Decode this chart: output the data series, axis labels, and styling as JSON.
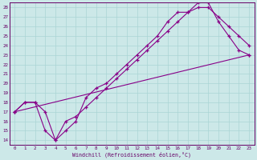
{
  "xlabel": "Windchill (Refroidissement éolien,°C)",
  "background_color": "#cce8e8",
  "grid_color": "#aad4d4",
  "line_color": "#880088",
  "spine_color": "#660066",
  "text_color": "#660066",
  "xlim": [
    -0.5,
    23.5
  ],
  "ylim": [
    13.5,
    28.5
  ],
  "xtick_labels": [
    "0",
    "1",
    "2",
    "3",
    "4",
    "5",
    "6",
    "7",
    "8",
    "9",
    "10",
    "11",
    "12",
    "13",
    "14",
    "15",
    "16",
    "17",
    "18",
    "19",
    "20",
    "21",
    "22",
    "23"
  ],
  "ytick_labels": [
    "14",
    "15",
    "16",
    "17",
    "18",
    "19",
    "20",
    "21",
    "22",
    "23",
    "24",
    "25",
    "26",
    "27",
    "28"
  ],
  "line1_x": [
    0,
    1,
    2,
    3,
    4,
    5,
    6,
    7,
    8,
    9,
    10,
    11,
    12,
    13,
    14,
    15,
    16,
    17,
    18,
    19,
    20,
    21,
    22,
    23
  ],
  "line1_y": [
    17.0,
    18.0,
    18.0,
    17.0,
    14.0,
    16.0,
    16.5,
    17.5,
    18.5,
    19.5,
    20.5,
    21.5,
    22.5,
    23.5,
    24.5,
    25.5,
    26.5,
    27.5,
    28.0,
    28.0,
    27.0,
    26.0,
    25.0,
    24.0
  ],
  "line2_x": [
    0,
    1,
    2,
    3,
    4,
    5,
    6,
    7,
    8,
    9,
    10,
    11,
    12,
    13,
    14,
    15,
    16,
    17,
    18,
    19,
    20,
    21,
    22,
    23
  ],
  "line2_y": [
    17.0,
    18.0,
    18.0,
    15.0,
    14.0,
    15.0,
    16.0,
    18.5,
    19.5,
    20.0,
    21.0,
    22.0,
    23.0,
    24.0,
    25.0,
    26.5,
    27.5,
    27.5,
    28.5,
    28.5,
    26.5,
    25.0,
    23.5,
    23.0
  ],
  "line3_x": [
    0,
    23
  ],
  "line3_y": [
    17.0,
    23.0
  ]
}
